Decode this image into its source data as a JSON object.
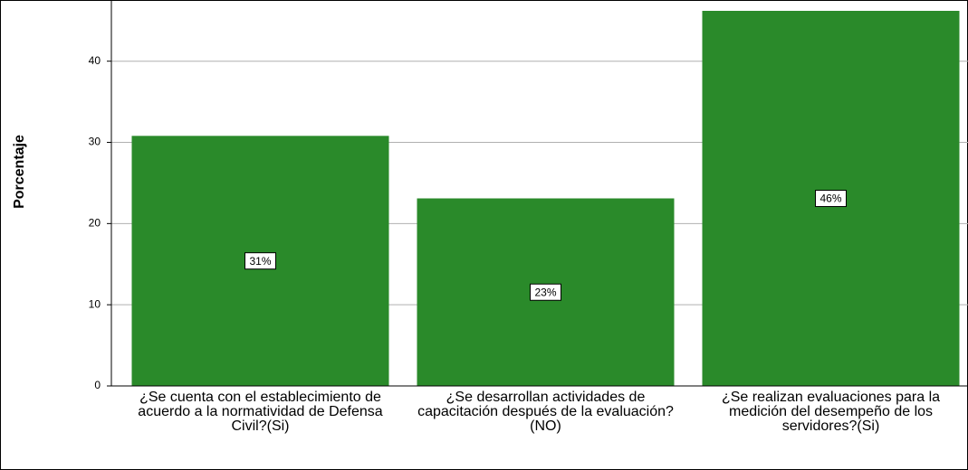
{
  "chart_data": {
    "type": "bar",
    "y_label": "Porcentaje",
    "categories": [
      "¿Se cuenta con el establecimiento de acuerdo a la normatividad de Defensa Civil?(Si)",
      "¿Se desarrollan actividades de capacitación después de la evaluación?(NO)",
      "¿Se realizan evaluaciones para la medición del desempeño de los  servidores?(Si)"
    ],
    "values": [
      30.8,
      23.1,
      46.2
    ],
    "value_labels": [
      "31%",
      "23%",
      "46%"
    ],
    "color": "#2a8a2a",
    "ylim": [
      0,
      46.2
    ],
    "yticks": [
      0,
      10,
      20,
      30,
      40
    ],
    "grid": true
  }
}
